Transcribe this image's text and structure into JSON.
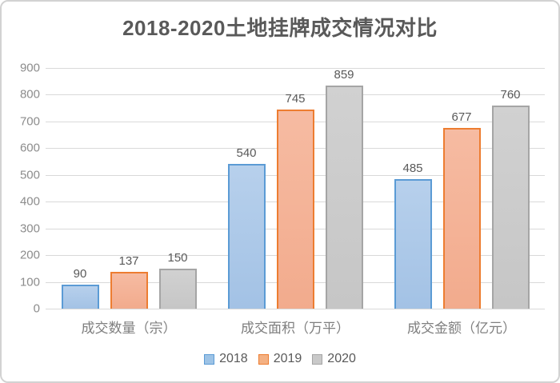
{
  "chart_data": {
    "type": "bar",
    "title": "2018-2020土地挂牌成交情况对比",
    "categories": [
      "成交数量（宗）",
      "成交面积（万平）",
      "成交金额（亿元）"
    ],
    "series": [
      {
        "name": "2018",
        "values": [
          90,
          540,
          485
        ],
        "fill_top": "#b7d0ec",
        "fill_bottom": "#a3c2e5",
        "border": "#5b9bd5",
        "legend_fill": "#9dc3e6"
      },
      {
        "name": "2019",
        "values": [
          137,
          745,
          677
        ],
        "fill_top": "#f6bba2",
        "fill_bottom": "#f2ab8d",
        "border": "#ed7d31",
        "legend_fill": "#f4b183"
      },
      {
        "name": "2020",
        "values": [
          150,
          859,
          760
        ],
        "fill_top": "#d1d1d1",
        "fill_bottom": "#c6c6c6",
        "border": "#a5a5a5",
        "legend_fill": "#c9c9c9"
      }
    ],
    "ylim": [
      0,
      900
    ],
    "ytick_step": 100,
    "ytick_labels": [
      "0",
      "100",
      "200",
      "300",
      "400",
      "500",
      "600",
      "700",
      "800",
      "900"
    ],
    "grid": true,
    "legend_position": "bottom",
    "xlabel": "",
    "ylabel": "",
    "colors": {
      "grid": "#d9d9d9",
      "axis_text": "#8c8c8c",
      "value_label_text": "#595959",
      "title_text": "#595959",
      "category_text": "#7f7f7f",
      "window_border": "#d2d2d2",
      "background": "#ffffff"
    }
  }
}
